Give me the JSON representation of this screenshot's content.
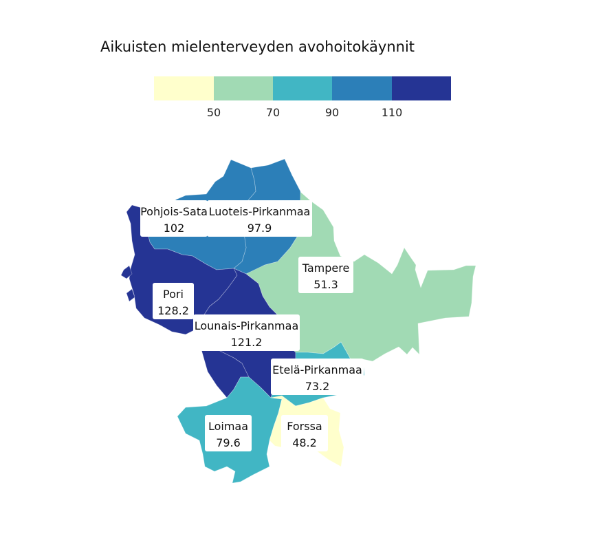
{
  "title": "Aikuisten mielenterveyden avohoitokäynnit",
  "legend": {
    "bins": [
      {
        "color": "#ffffcc",
        "upper": "50"
      },
      {
        "color": "#a1dab4",
        "upper": "70"
      },
      {
        "color": "#41b6c4",
        "upper": "90"
      },
      {
        "color": "#2c7fb8",
        "upper": "110"
      },
      {
        "color": "#253494",
        "upper": ""
      }
    ]
  },
  "regions": [
    {
      "key": "pohjois-satakunta",
      "name": "Pohjois-Sata",
      "value": "102",
      "color": "#2c7fb8"
    },
    {
      "key": "luoteis-pirkanmaa",
      "name": "Luoteis-Pirkanmaa",
      "value": "97.9",
      "color": "#2c7fb8"
    },
    {
      "key": "tampere",
      "name": "Tampere",
      "value": "51.3",
      "color": "#a1dab4"
    },
    {
      "key": "pori",
      "name": "Pori",
      "value": "128.2",
      "color": "#253494"
    },
    {
      "key": "lounais-pirkanmaa",
      "name": "Lounais-Pirkanmaa",
      "value": "121.2",
      "color": "#253494"
    },
    {
      "key": "etela-pirkanmaa",
      "name": "Etelä-Pirkanmaa",
      "value": "73.2",
      "color": "#41b6c4"
    },
    {
      "key": "loimaa",
      "name": "Loimaa",
      "value": "79.6",
      "color": "#41b6c4"
    },
    {
      "key": "forssa",
      "name": "Forssa",
      "value": "48.2",
      "color": "#ffffcc"
    }
  ]
}
